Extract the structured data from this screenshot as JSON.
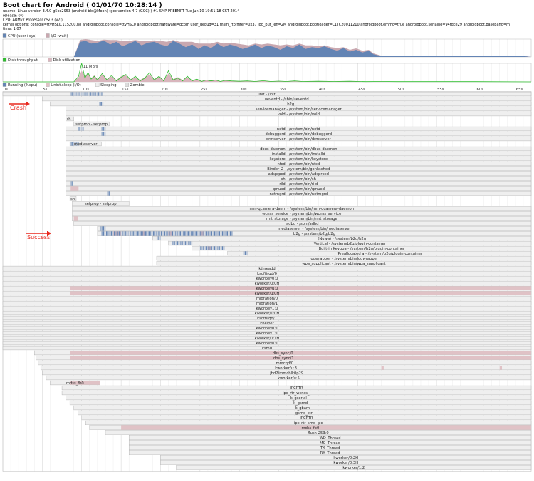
{
  "header": {
    "title": "Boot chart for Android ( 01/01/70 10:28:14 )",
    "lines": [
      "uname: Linux version 3.4.0-g5bc2953 (android-bld@Moon) (gcc version 4.7 (GCC) ) #1 SMP PREEMPT Tue Jun 10 19:51:18 CST 2014",
      "release: 0.0",
      "CPU: ARMv7 Processor rev 3 (v7l)",
      "kernel options: console=ttyHSL0,115200,n8 androidboot.console=ttyHSL0 androidboot.hardware=qcom user_debug=31 msm_rtb.filter=0x37 log_buf_len=2M androidboot.bootloader=L1TC20011210 androidboot.emmc=true androidboot.serialno=94fdce29 androidboot.baseband=m",
      "time: 1:07"
    ]
  },
  "colors": {
    "cpu": "#6384b4",
    "iowait": "#c9a8b0",
    "disk_throughput": "#2fbe2f",
    "disk_util": "#d9b6bd",
    "running": "#6384b4",
    "sleep_io": "#e0c2c6",
    "sleeping": "#efefef",
    "grid": "#dcdcdc",
    "anno": "#e8281e"
  },
  "chart_data": {
    "type": "area",
    "x_unit": "s",
    "xlim": [
      0,
      67
    ],
    "ticks": [
      "0s",
      "5s",
      "10s",
      "15s",
      "20s",
      "25s",
      "30s",
      "35s",
      "40s",
      "45s",
      "50s",
      "55s",
      "60s",
      "65s"
    ],
    "cpu_legend": [
      "CPU (user+sys)",
      "I/O (wait)"
    ],
    "cpu": {
      "x": [
        0,
        9.0,
        9.8,
        10.5,
        11.2,
        12.0,
        12.8,
        13.6,
        14.4,
        15.2,
        16.0,
        16.8,
        17.6,
        18.4,
        19.2,
        20.0,
        20.8,
        21.6,
        22.4,
        23.2,
        24.0,
        24.8,
        25.6,
        26.4,
        27.2,
        28.0,
        28.8,
        29.6,
        30.4,
        31.2,
        32.0,
        32.8,
        33.6,
        34.4,
        35.2,
        36.0,
        36.8,
        37.6,
        38.4,
        39.2,
        40.0,
        40.8,
        41.6,
        42.4,
        43.2,
        44.0,
        44.8,
        45.6,
        46.4,
        47.0,
        48,
        50,
        52,
        54,
        56,
        58,
        60,
        62,
        64,
        66,
        67
      ],
      "user_sys": [
        0,
        0,
        0.85,
        0.9,
        0.75,
        0.8,
        0.92,
        0.7,
        0.85,
        0.6,
        0.75,
        0.9,
        0.65,
        0.8,
        0.85,
        0.7,
        0.6,
        0.9,
        0.75,
        0.55,
        0.7,
        0.45,
        0.65,
        0.5,
        0.75,
        0.55,
        0.7,
        0.6,
        0.45,
        0.55,
        0.7,
        0.5,
        0.65,
        0.55,
        0.4,
        0.6,
        0.5,
        0.7,
        0.45,
        0.55,
        0.5,
        0.6,
        0.45,
        0.35,
        0.5,
        0.3,
        0.4,
        0.25,
        0.35,
        0.15,
        0.05,
        0.05,
        0.04,
        0.05,
        0.04,
        0.05,
        0.04,
        0.05,
        0.06,
        0.05,
        0
      ],
      "io_wait": [
        0,
        0,
        0.1,
        0.15,
        0.2,
        0.1,
        0.05,
        0.25,
        0.1,
        0.3,
        0.15,
        0.05,
        0.25,
        0.1,
        0.08,
        0.2,
        0.25,
        0.05,
        0.1,
        0.3,
        0.15,
        0.3,
        0.1,
        0.25,
        0.1,
        0.2,
        0.1,
        0.15,
        0.25,
        0.1,
        0.05,
        0.2,
        0.1,
        0.15,
        0.25,
        0.1,
        0.15,
        0.05,
        0.2,
        0.1,
        0.1,
        0.05,
        0.1,
        0.15,
        0.05,
        0.1,
        0.08,
        0.1,
        0.05,
        0.05,
        0.02,
        0.01,
        0.02,
        0.01,
        0.02,
        0.01,
        0.02,
        0.01,
        0.01,
        0.02,
        0
      ]
    },
    "disk_legend": [
      "Disk throughput",
      "Disk utilization"
    ],
    "disk_peak_label": "11 MB/s",
    "disk": {
      "x": [
        0,
        9,
        9.6,
        10.0,
        10.4,
        10.8,
        11.2,
        11.6,
        12,
        12.6,
        13.2,
        13.8,
        14.4,
        15,
        15.6,
        16.2,
        16.8,
        17.4,
        18,
        18.6,
        19.2,
        19.8,
        20.4,
        21,
        21.6,
        22.2,
        22.8,
        23.4,
        24,
        24.6,
        25.2,
        25.8,
        26.4,
        27,
        27.6,
        28.2,
        29,
        30,
        31,
        32,
        33,
        34,
        35,
        36,
        37,
        38,
        40,
        42,
        44,
        46,
        48,
        50,
        55,
        60,
        67
      ],
      "throughput": [
        0,
        0,
        0.3,
        1.0,
        0.2,
        0.5,
        0.15,
        0.3,
        0.1,
        0.45,
        0.1,
        0.35,
        0.05,
        0.25,
        0.4,
        0.1,
        0.3,
        0.05,
        0.2,
        0.5,
        0.1,
        0.3,
        0.05,
        0.6,
        0.1,
        0.2,
        0.05,
        0.3,
        0.05,
        0.15,
        0.02,
        0.1,
        0.05,
        0.1,
        0.02,
        0.08,
        0.05,
        0.03,
        0.05,
        0.02,
        0.06,
        0.02,
        0.04,
        0.02,
        0.05,
        0.02,
        0.03,
        0.02,
        0.03,
        0.01,
        0.02,
        0.01,
        0.01,
        0.01,
        0
      ],
      "utilization": [
        0,
        0,
        0.25,
        0.6,
        0.3,
        0.45,
        0.2,
        0.35,
        0.15,
        0.4,
        0.15,
        0.3,
        0.1,
        0.3,
        0.35,
        0.15,
        0.25,
        0.1,
        0.25,
        0.4,
        0.15,
        0.3,
        0.1,
        0.45,
        0.15,
        0.25,
        0.1,
        0.25,
        0.1,
        0.15,
        0.05,
        0.12,
        0.06,
        0.1,
        0.04,
        0.08,
        0.05,
        0.04,
        0.05,
        0.03,
        0.05,
        0.03,
        0.04,
        0.02,
        0.04,
        0.02,
        0.03,
        0.02,
        0.03,
        0.01,
        0.02,
        0.01,
        0.01,
        0.01,
        0
      ]
    },
    "process_legend": [
      "Running (%cpu)",
      "Unint.sleep (I/O)",
      "Sleeping",
      "Zombie"
    ],
    "processes": [
      {
        "name": "init - /init",
        "start": 0,
        "end": 67,
        "run": [
          [
            8.5,
            12.5,
            0.5
          ]
        ],
        "io": []
      },
      {
        "name": "ueventd - /sbin/ueventd",
        "start": 5,
        "end": 67,
        "run": [],
        "io": []
      },
      {
        "name": "b2g",
        "start": 6,
        "end": 67,
        "run": [
          [
            12.2,
            12.6,
            0.9
          ]
        ],
        "io": []
      },
      {
        "name": "servicemanager - /system/bin/servicemanager",
        "start": 8,
        "end": 67,
        "run": [],
        "io": []
      },
      {
        "name": "vold - /system/bin/vold",
        "start": 8,
        "end": 67,
        "run": [],
        "io": []
      },
      {
        "name": "sh",
        "start": 8,
        "end": 9,
        "run": [],
        "io": []
      },
      {
        "name": "setprop - setprop",
        "start": 9,
        "end": 13.5,
        "run": [],
        "io": []
      },
      {
        "name": "netd - /system/bin/netd",
        "start": 8,
        "end": 67,
        "run": [
          [
            9.5,
            10.2,
            0.9
          ],
          [
            12.5,
            13,
            0.6
          ]
        ],
        "io": []
      },
      {
        "name": "debuggerd - /system/bin/debuggerd",
        "start": 8,
        "end": 67,
        "run": [
          [
            12.5,
            13,
            0.6
          ]
        ],
        "io": []
      },
      {
        "name": "drmserver - /system/bin/drmserver",
        "start": 8,
        "end": 67,
        "run": [],
        "io": []
      },
      {
        "name": "mediaserver",
        "start": 8.5,
        "end": 12.5,
        "run": [
          [
            8.5,
            9.5,
            0.6
          ]
        ],
        "io": []
      },
      {
        "name": "dbus-daemon - /system/bin/dbus-daemon",
        "start": 8,
        "end": 67,
        "run": [],
        "io": []
      },
      {
        "name": "installd - /system/bin/installd",
        "start": 8,
        "end": 67,
        "run": [],
        "io": []
      },
      {
        "name": "keystore - /system/bin/keystore",
        "start": 8,
        "end": 67,
        "run": [],
        "io": []
      },
      {
        "name": "nfcd - /system/bin/nfcd",
        "start": 8,
        "end": 67,
        "run": [],
        "io": []
      },
      {
        "name": "Binder_2 - /system/bin/gonksched",
        "start": 8,
        "end": 67,
        "run": [],
        "io": []
      },
      {
        "name": "adsprpcd - /system/bin/adsprpcd",
        "start": 8,
        "end": 67,
        "run": [],
        "io": []
      },
      {
        "name": "sh - /system/bin/sh",
        "start": 8,
        "end": 67,
        "run": [],
        "io": []
      },
      {
        "name": "rild - /system/bin/rild",
        "start": 8,
        "end": 67,
        "run": [
          [
            8.5,
            8.8,
            0.5
          ]
        ],
        "io": []
      },
      {
        "name": "qmuxd - /system/bin/qmuxd",
        "start": 8,
        "end": 67,
        "run": [],
        "io": [
          [
            8.6,
            9.6
          ]
        ]
      },
      {
        "name": "netmgrd - /system/bin/netmgrd",
        "start": 8,
        "end": 67,
        "run": [
          [
            13.2,
            13.4,
            0.5
          ]
        ],
        "io": []
      },
      {
        "name": "sh",
        "start": 8.5,
        "end": 9.3,
        "run": [],
        "io": []
      },
      {
        "name": "setprop - setprop",
        "start": 8.8,
        "end": 16,
        "run": [],
        "io": []
      },
      {
        "name": "mm-qcamera-daem - /system/bin/mm-qcamera-daemon",
        "start": 8.8,
        "end": 67,
        "run": [],
        "io": []
      },
      {
        "name": "wcnss_service - /system/bin/wcnss_service",
        "start": 8.8,
        "end": 67,
        "run": [],
        "io": []
      },
      {
        "name": "rmt_storage - /system/bin/rmt_storage",
        "start": 8.8,
        "end": 67,
        "run": [],
        "io": [
          [
            9.0,
            9.5
          ]
        ]
      },
      {
        "name": "adbd - /sbin/adbd",
        "start": 9,
        "end": 67,
        "run": [],
        "io": []
      },
      {
        "name": "mediaserver - /system/bin/mediaserver",
        "start": 12,
        "end": 67,
        "run": [
          [
            12.3,
            13,
            0.9
          ]
        ],
        "io": []
      },
      {
        "name": "b2g - /system/b2g/b2g",
        "start": 12,
        "end": 67,
        "run": [
          [
            12.5,
            29,
            0.8
          ]
        ],
        "io": [
          [
            14,
            15
          ],
          [
            17.5,
            18
          ],
          [
            21,
            21.5
          ],
          [
            25,
            25.5
          ]
        ]
      },
      {
        "name": "(Nuwa) - /system/b2g/b2g",
        "start": 19,
        "end": 67,
        "run": [
          [
            19.5,
            20,
            0.6
          ]
        ],
        "io": []
      },
      {
        "name": "Vertical - /system/b2g/plugin-container",
        "start": 21,
        "end": 67,
        "run": [
          [
            21.5,
            24,
            0.6
          ]
        ],
        "io": []
      },
      {
        "name": "Built-in Keyboa - /system/b2g/plugin-container",
        "start": 24,
        "end": 67,
        "run": [
          [
            25,
            28,
            0.7
          ]
        ],
        "io": [
          [
            26,
            26.5
          ]
        ]
      },
      {
        "name": "(Preallocated a - /system/b2g/plugin-container",
        "start": 28.5,
        "end": 67,
        "run": [
          [
            30.5,
            31,
            0.9
          ]
        ],
        "io": []
      },
      {
        "name": "logwrapper - /system/bin/logwrapper",
        "start": 19.5,
        "end": 67,
        "run": [],
        "io": []
      },
      {
        "name": "wpa_supplicant - /system/bin/wpa_supplicant",
        "start": 19.5,
        "end": 67,
        "run": [],
        "io": []
      },
      {
        "name": "kthreadd",
        "start": 0,
        "end": 67,
        "run": [],
        "io": []
      },
      {
        "name": "ksoftirqd/0",
        "start": 0,
        "end": 67,
        "run": [],
        "io": []
      },
      {
        "name": "kworker/0:0",
        "start": 0,
        "end": 67,
        "run": [],
        "io": []
      },
      {
        "name": "kworker/0:0H",
        "start": 0,
        "end": 67,
        "run": [],
        "io": []
      },
      {
        "name": "kworker/u:0",
        "start": 0,
        "end": 67,
        "run": [],
        "io": [
          [
            8.5,
            67
          ]
        ]
      },
      {
        "name": "kworker/u:0H",
        "start": 0,
        "end": 67,
        "run": [],
        "io": [
          [
            8.5,
            67
          ]
        ]
      },
      {
        "name": "migration/0",
        "start": 0,
        "end": 67,
        "run": [],
        "io": []
      },
      {
        "name": "migration/1",
        "start": 0,
        "end": 67,
        "run": [],
        "io": []
      },
      {
        "name": "kworker/1:0",
        "start": 0,
        "end": 67,
        "run": [],
        "io": []
      },
      {
        "name": "kworker/1:0H",
        "start": 0,
        "end": 67,
        "run": [],
        "io": []
      },
      {
        "name": "ksoftirqd/1",
        "start": 0,
        "end": 67,
        "run": [],
        "io": []
      },
      {
        "name": "khelper",
        "start": 0,
        "end": 67,
        "run": [],
        "io": []
      },
      {
        "name": "kworker/0:1",
        "start": 0,
        "end": 67,
        "run": [],
        "io": []
      },
      {
        "name": "kworker/1:1",
        "start": 0,
        "end": 67,
        "run": [],
        "io": []
      },
      {
        "name": "kworker/0:1H",
        "start": 0,
        "end": 67,
        "run": [],
        "io": []
      },
      {
        "name": "kworker/u:1",
        "start": 0,
        "end": 67,
        "run": [],
        "io": []
      },
      {
        "name": "ksmd",
        "start": 0,
        "end": 67,
        "run": [],
        "io": []
      },
      {
        "name": "dbs_sync/0",
        "start": 4,
        "end": 67,
        "run": [],
        "io": [
          [
            8.5,
            67
          ]
        ]
      },
      {
        "name": "dbs_sync/1",
        "start": 4.2,
        "end": 67,
        "run": [],
        "io": [
          [
            8.5,
            67
          ]
        ]
      },
      {
        "name": "mmcqd/0",
        "start": 4.5,
        "end": 67,
        "run": [],
        "io": []
      },
      {
        "name": "kworker/u:3",
        "start": 4.8,
        "end": 67,
        "run": [],
        "io": [
          [
            48,
            48.3
          ],
          [
            63,
            63.3
          ]
        ]
      },
      {
        "name": "jbd2/mmcblk0p29",
        "start": 5,
        "end": 67,
        "run": [],
        "io": []
      },
      {
        "name": "kworker/u:5",
        "start": 5.5,
        "end": 67,
        "run": [],
        "io": []
      },
      {
        "name": "mdss_fb0",
        "start": 6,
        "end": 12.3,
        "run": [],
        "io": [
          [
            8.5,
            12.3
          ]
        ]
      },
      {
        "name": "IPCRTR",
        "start": 7.5,
        "end": 67,
        "run": [],
        "io": []
      },
      {
        "name": "ipc_rtr_wcnss_i",
        "start": 7.5,
        "end": 67,
        "run": [],
        "io": []
      },
      {
        "name": "k_gserial",
        "start": 8,
        "end": 67,
        "run": [],
        "io": []
      },
      {
        "name": "k_gsmd",
        "start": 8.5,
        "end": 67,
        "run": [],
        "io": []
      },
      {
        "name": "k_gbam",
        "start": 9,
        "end": 67,
        "run": [],
        "io": []
      },
      {
        "name": "gsmd_ctrl",
        "start": 9.5,
        "end": 67,
        "run": [],
        "io": []
      },
      {
        "name": "IPCRTR",
        "start": 10,
        "end": 67,
        "run": [],
        "io": []
      },
      {
        "name": "ipc_rtr_smd_ipc",
        "start": 10.5,
        "end": 67,
        "run": [],
        "io": []
      },
      {
        "name": "mdss_fb0",
        "start": 11,
        "end": 67,
        "run": [],
        "io": [
          [
            15,
            67
          ]
        ]
      },
      {
        "name": "flush-253:0",
        "start": 13,
        "end": 67,
        "run": [],
        "io": []
      },
      {
        "name": "WD_Thread",
        "start": 16,
        "end": 67,
        "run": [],
        "io": []
      },
      {
        "name": "MC_Thread",
        "start": 16,
        "end": 67,
        "run": [],
        "io": []
      },
      {
        "name": "TX_Thread",
        "start": 16,
        "end": 67,
        "run": [],
        "io": []
      },
      {
        "name": "RX_Thread",
        "start": 16,
        "end": 67,
        "run": [],
        "io": []
      },
      {
        "name": "kworker/0:2H",
        "start": 20,
        "end": 67,
        "run": [],
        "io": []
      },
      {
        "name": "kworker/0:3H",
        "start": 20,
        "end": 67,
        "run": [],
        "io": []
      },
      {
        "name": "kworker/1:2",
        "start": 22,
        "end": 67,
        "run": [],
        "io": []
      }
    ],
    "annotations": [
      {
        "label": "Crash",
        "row": 2
      },
      {
        "label": "Success",
        "row": 28
      }
    ]
  }
}
